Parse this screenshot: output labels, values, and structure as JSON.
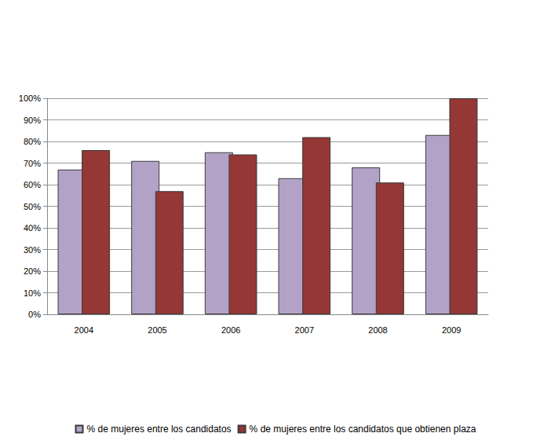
{
  "chart_data": {
    "type": "bar",
    "categories": [
      "2004",
      "2005",
      "2006",
      "2007",
      "2008",
      "2009"
    ],
    "series": [
      {
        "name": "% de mujeres entre los candidatos",
        "color": "#b3a2c7",
        "values": [
          67,
          71,
          75,
          63,
          68,
          83
        ]
      },
      {
        "name": "% de mujeres entre los candidatos que obtienen plaza",
        "color": "#953735",
        "values": [
          76,
          57,
          74,
          82,
          61,
          100
        ]
      }
    ],
    "ylim": [
      0,
      100
    ],
    "yticks": [
      {
        "value": 0,
        "label": "0%"
      },
      {
        "value": 10,
        "label": "10%"
      },
      {
        "value": 20,
        "label": "20%"
      },
      {
        "value": 30,
        "label": "30%"
      },
      {
        "value": 40,
        "label": "40%"
      },
      {
        "value": 50,
        "label": "50%"
      },
      {
        "value": 60,
        "label": "60%"
      },
      {
        "value": 70,
        "label": "70%"
      },
      {
        "value": 80,
        "label": "80%"
      },
      {
        "value": 90,
        "label": "90%"
      },
      {
        "value": 100,
        "label": "100%"
      }
    ],
    "grid": true,
    "legend": "bottom"
  }
}
